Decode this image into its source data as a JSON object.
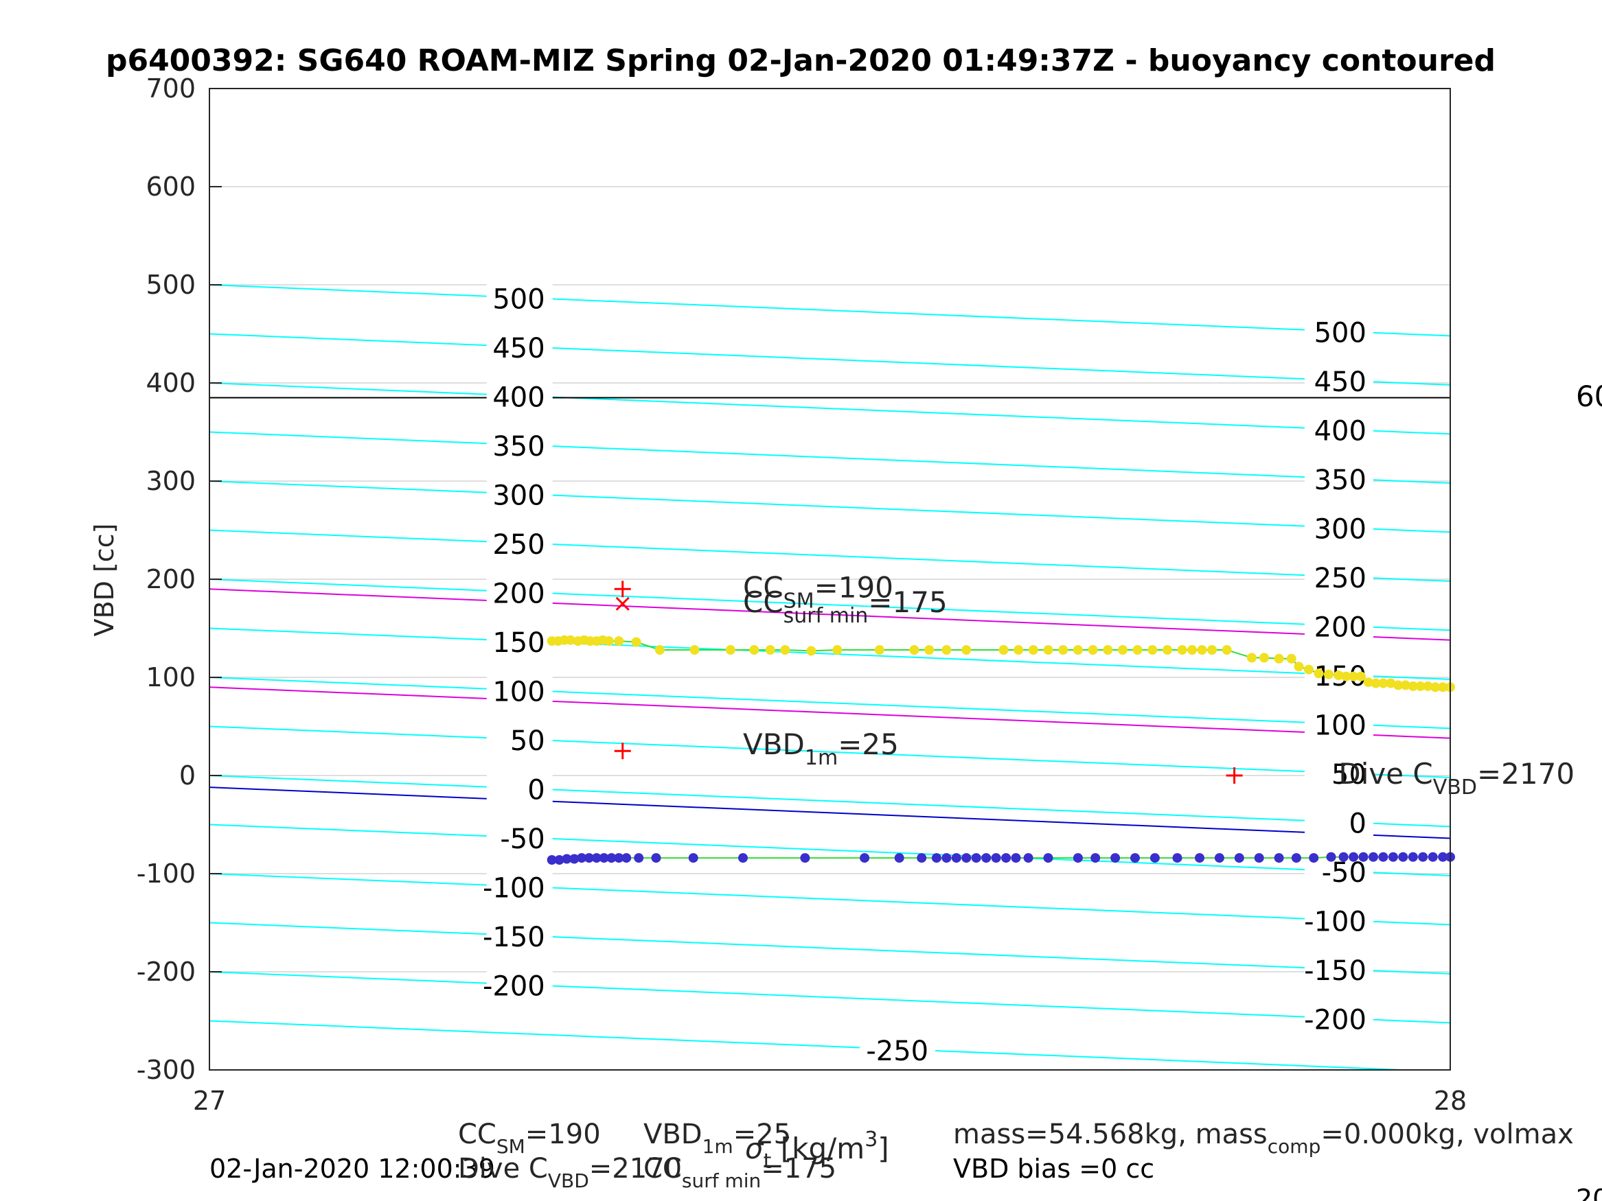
{
  "chart_data": {
    "type": "scatter",
    "title": "p6400392: SG640 ROAM-MIZ Spring 02-Jan-2020 01:49:37Z - buoyancy contoured",
    "xlabel": "σ_t [kg/m^3]",
    "ylabel": "VBD [cc]",
    "xlim": [
      27,
      28
    ],
    "ylim": [
      -300,
      700
    ],
    "x_ticks": [
      "27",
      "28"
    ],
    "y_ticks": [
      "-300",
      "-200",
      "-100",
      "0",
      "100",
      "200",
      "300",
      "400",
      "500",
      "600",
      "700"
    ],
    "grid": true,
    "contours": {
      "color": "#00ffff",
      "levels": [
        500,
        450,
        400,
        350,
        300,
        250,
        200,
        150,
        100,
        50,
        0,
        -50,
        -100,
        -150,
        -200,
        -250
      ],
      "left_labels": [
        "500",
        "450",
        "400",
        "350",
        "300",
        "250",
        "200",
        "150",
        "100",
        "50",
        "0",
        "-50",
        "-100",
        "-150",
        "-200"
      ],
      "right_labels": [
        "500",
        "450",
        "400",
        "350",
        "300",
        "250",
        "200",
        "150",
        "100",
        "50",
        "0",
        "-50",
        "-100",
        "-150",
        "-200"
      ],
      "bottom_label": "-250",
      "slope_cc_per_sigma": -52
    },
    "reference_lines": [
      {
        "kind": "horizontal",
        "y": 385,
        "color": "#000000"
      },
      {
        "kind": "contour",
        "offset": 190,
        "color": "#dd00dd"
      },
      {
        "kind": "contour",
        "offset": 90,
        "color": "#dd00dd"
      },
      {
        "kind": "contour",
        "offset": -12,
        "color": "#0000cc"
      }
    ],
    "markers": [
      {
        "x": 27.333,
        "y": 190,
        "symbol": "+",
        "color": "#ff0000"
      },
      {
        "x": 27.333,
        "y": 175,
        "symbol": "x",
        "color": "#ff0000"
      },
      {
        "x": 27.333,
        "y": 25,
        "symbol": "+",
        "color": "#ff0000"
      },
      {
        "x": 27.826,
        "y": 0,
        "symbol": "+",
        "color": "#ff0000"
      }
    ],
    "annotations": {
      "cc_sm": {
        "main": "CC",
        "sub": "SM",
        "value": "=190",
        "x": 27.43,
        "y": 190
      },
      "cc_surf": {
        "main": "CC",
        "sub": "surf min",
        "value": "=175",
        "x": 27.43,
        "y": 175
      },
      "vbd_1m": {
        "main": "VBD",
        "sub": "1m",
        "value": "=25",
        "x": 27.43,
        "y": 30
      },
      "dive_c": {
        "main": "Dive C",
        "sub": "VBD",
        "value": "=2170",
        "x": 27.91,
        "y": 0
      },
      "right_clip": "60"
    },
    "series": [
      {
        "color": "#f0e020",
        "trace_color": "#33dd33",
        "points": [
          [
            27.276,
            137
          ],
          [
            27.281,
            137
          ],
          [
            27.286,
            138
          ],
          [
            27.291,
            138
          ],
          [
            27.297,
            137
          ],
          [
            27.302,
            138
          ],
          [
            27.307,
            137
          ],
          [
            27.312,
            137
          ],
          [
            27.317,
            138
          ],
          [
            27.322,
            137
          ],
          [
            27.33,
            137
          ],
          [
            27.344,
            136
          ],
          [
            27.363,
            128
          ],
          [
            27.391,
            128
          ],
          [
            27.42,
            128
          ],
          [
            27.439,
            128
          ],
          [
            27.452,
            128
          ],
          [
            27.464,
            128
          ],
          [
            27.485,
            127
          ],
          [
            27.506,
            128
          ],
          [
            27.54,
            128
          ],
          [
            27.568,
            128
          ],
          [
            27.58,
            128
          ],
          [
            27.594,
            128
          ],
          [
            27.61,
            128
          ],
          [
            27.64,
            128
          ],
          [
            27.652,
            128
          ],
          [
            27.664,
            128
          ],
          [
            27.676,
            128
          ],
          [
            27.688,
            128
          ],
          [
            27.7,
            128
          ],
          [
            27.712,
            128
          ],
          [
            27.724,
            128
          ],
          [
            27.736,
            128
          ],
          [
            27.748,
            128
          ],
          [
            27.76,
            128
          ],
          [
            27.772,
            128
          ],
          [
            27.784,
            128
          ],
          [
            27.792,
            128
          ],
          [
            27.8,
            128
          ],
          [
            27.808,
            128
          ],
          [
            27.82,
            128
          ],
          [
            27.84,
            120
          ],
          [
            27.85,
            120
          ],
          [
            27.862,
            119
          ],
          [
            27.872,
            119
          ],
          [
            27.878,
            111
          ],
          [
            27.886,
            108
          ],
          [
            27.894,
            104
          ],
          [
            27.902,
            103
          ],
          [
            27.91,
            102
          ],
          [
            27.916,
            101
          ],
          [
            27.922,
            101
          ],
          [
            27.928,
            101
          ],
          [
            27.934,
            95
          ],
          [
            27.94,
            94
          ],
          [
            27.946,
            94
          ],
          [
            27.952,
            94
          ],
          [
            27.958,
            92
          ],
          [
            27.964,
            92
          ],
          [
            27.97,
            91
          ],
          [
            27.976,
            91
          ],
          [
            27.982,
            91
          ],
          [
            27.988,
            90
          ],
          [
            27.994,
            90
          ],
          [
            28.0,
            90
          ]
        ]
      },
      {
        "color": "#3a2ecc",
        "trace_color": "#33dd33",
        "points": [
          [
            27.276,
            -86
          ],
          [
            27.282,
            -86
          ],
          [
            27.288,
            -85
          ],
          [
            27.294,
            -85
          ],
          [
            27.3,
            -84
          ],
          [
            27.306,
            -84
          ],
          [
            27.312,
            -84
          ],
          [
            27.318,
            -84
          ],
          [
            27.324,
            -84
          ],
          [
            27.33,
            -84
          ],
          [
            27.336,
            -84
          ],
          [
            27.346,
            -84
          ],
          [
            27.36,
            -84
          ],
          [
            27.39,
            -84
          ],
          [
            27.43,
            -84
          ],
          [
            27.48,
            -84
          ],
          [
            27.528,
            -84
          ],
          [
            27.556,
            -84
          ],
          [
            27.574,
            -84
          ],
          [
            27.586,
            -84
          ],
          [
            27.594,
            -84
          ],
          [
            27.602,
            -84
          ],
          [
            27.61,
            -84
          ],
          [
            27.618,
            -84
          ],
          [
            27.626,
            -84
          ],
          [
            27.634,
            -84
          ],
          [
            27.642,
            -84
          ],
          [
            27.65,
            -84
          ],
          [
            27.66,
            -84
          ],
          [
            27.676,
            -84
          ],
          [
            27.7,
            -84
          ],
          [
            27.714,
            -84
          ],
          [
            27.73,
            -84
          ],
          [
            27.746,
            -84
          ],
          [
            27.762,
            -84
          ],
          [
            27.78,
            -84
          ],
          [
            27.798,
            -84
          ],
          [
            27.814,
            -84
          ],
          [
            27.83,
            -84
          ],
          [
            27.846,
            -84
          ],
          [
            27.862,
            -84
          ],
          [
            27.876,
            -84
          ],
          [
            27.89,
            -84
          ],
          [
            27.904,
            -83
          ],
          [
            27.914,
            -83
          ],
          [
            27.922,
            -83
          ],
          [
            27.93,
            -83
          ],
          [
            27.938,
            -83
          ],
          [
            27.946,
            -83
          ],
          [
            27.954,
            -83
          ],
          [
            27.962,
            -83
          ],
          [
            27.97,
            -83
          ],
          [
            27.978,
            -83
          ],
          [
            27.986,
            -83
          ],
          [
            27.994,
            -83
          ],
          [
            28.0,
            -83
          ]
        ]
      }
    ],
    "footer": {
      "line1_left": "02-Jan-2020 12:00:39",
      "cc_sm_text": "CC",
      "cc_sm_sub": "SM",
      "cc_sm_val": "=190",
      "dive_text": "Dive C",
      "dive_sub": "VBD",
      "dive_val": "=2170",
      "vbd_text": "VBD",
      "vbd_sub": "1m",
      "vbd_val": "=25",
      "cc_surf_text": "CC",
      "cc_surf_sub": "surf min",
      "cc_surf_val": "=175",
      "mass_text": "mass=54.568kg, mass",
      "mass_sub": "comp",
      "mass_rest": "=0.000kg, volmax",
      "bias_text": "VBD bias =0 cc",
      "right_clip": "20"
    }
  }
}
